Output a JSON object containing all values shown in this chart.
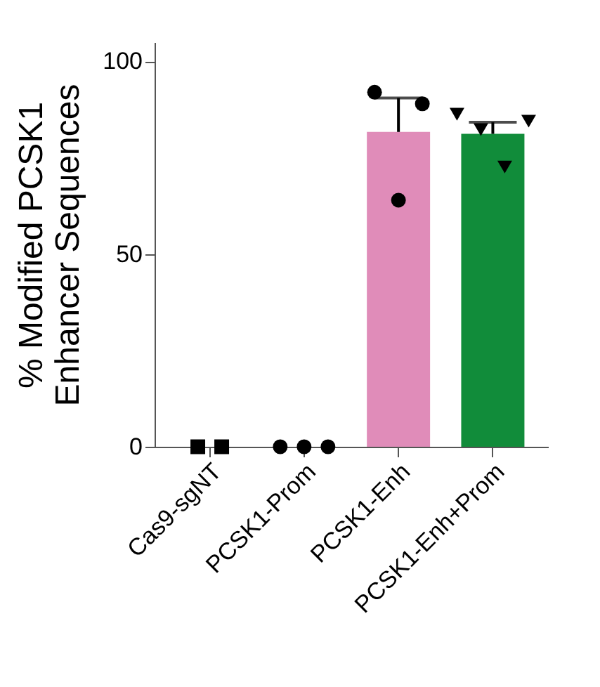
{
  "chart_data": {
    "type": "bar",
    "ylabel": "% Modified PCSK1\nEnhancer Sequences",
    "categories": [
      "Cas9-sgNT",
      "PCSK1-Prom",
      "PCSK1-Enh",
      "PCSK1-Enh+Prom"
    ],
    "series": [
      {
        "values": [
          0,
          0,
          81.7,
          81.2
        ],
        "colors": [
          "#d62728",
          "#d62728",
          "#e08cb9",
          "#118c3a"
        ],
        "errors": [
          null,
          null,
          [
            81.7,
            90.5
          ],
          [
            81.2,
            84.2
          ]
        ]
      },
      {
        "type": "scatter",
        "x": [
          "Cas9-sgNT",
          "Cas9-sgNT"
        ],
        "values": [
          0,
          0
        ],
        "marker": "square",
        "color": "#000000"
      },
      {
        "type": "scatter",
        "x": [
          "PCSK1-Prom",
          "PCSK1-Prom",
          "PCSK1-Prom"
        ],
        "values": [
          0,
          0,
          0
        ],
        "marker": "circle",
        "color": "#000000"
      },
      {
        "type": "scatter",
        "x": [
          "PCSK1-Enh",
          "PCSK1-Enh",
          "PCSK1-Enh"
        ],
        "values": [
          92,
          64,
          89
        ],
        "marker": "circle",
        "color": "#000000"
      },
      {
        "type": "scatter",
        "x": [
          "PCSK1-Enh+Prom",
          "PCSK1-Enh+Prom",
          "PCSK1-Enh+Prom",
          "PCSK1-Enh+Prom"
        ],
        "values": [
          86.3,
          82.3,
          72.6,
          84.5
        ],
        "marker": "triangle",
        "color": "#000000"
      }
    ],
    "ylim": [
      0,
      105
    ],
    "yticks": [
      0,
      50,
      100
    ]
  }
}
